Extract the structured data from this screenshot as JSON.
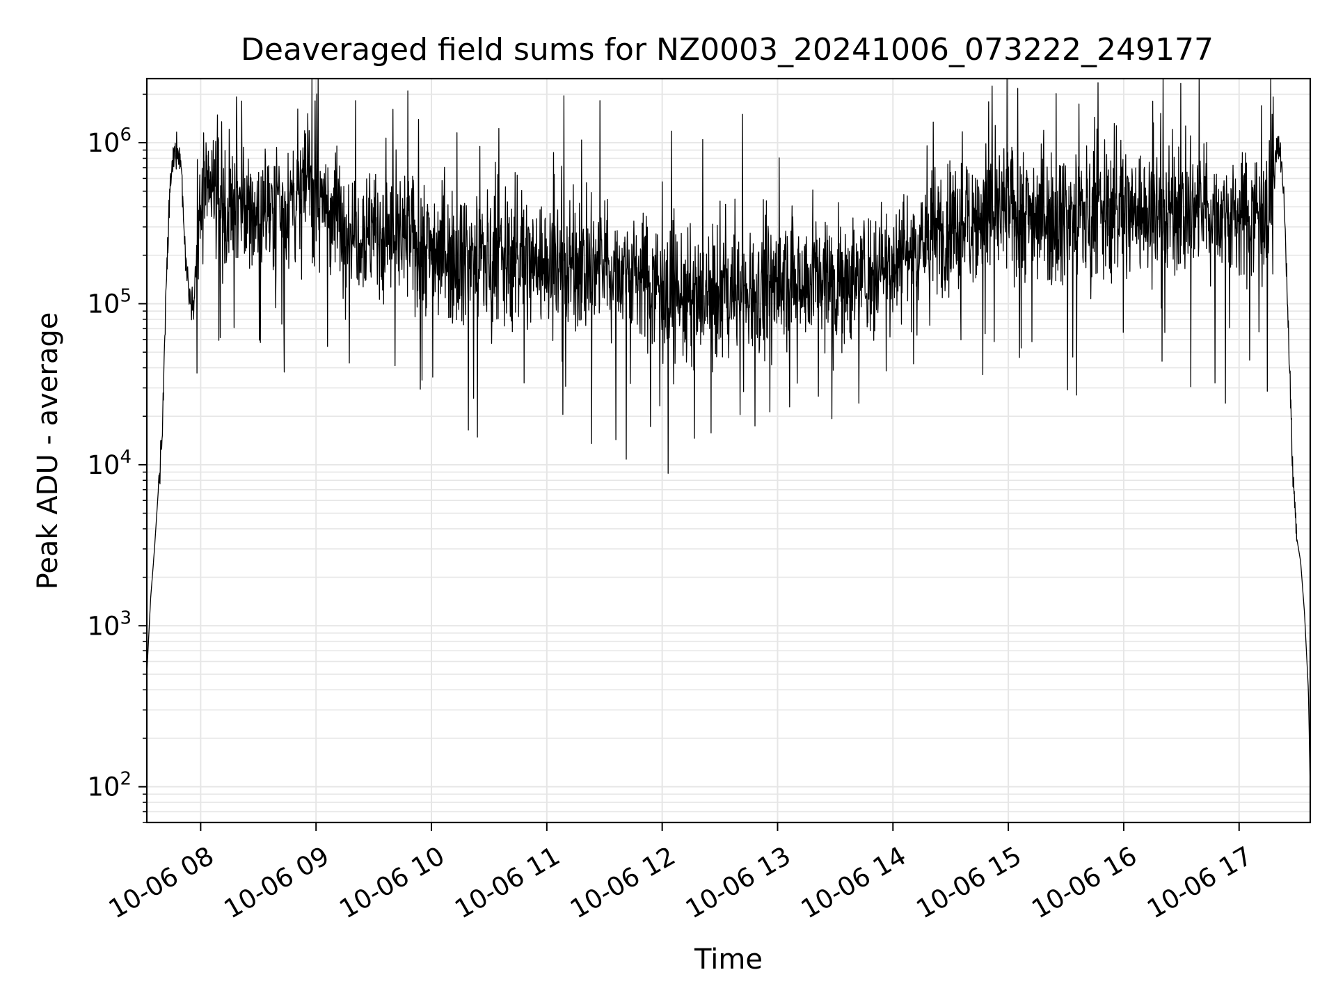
{
  "chart_data": {
    "type": "line",
    "title": "Deaveraged field sums for NZ0003_20241006_073222_249177",
    "xlabel": "Time",
    "ylabel": "Peak ADU - average",
    "xscale": "date",
    "yscale": "log",
    "xlim": [
      "10-06 07:32",
      "10-06 17:37"
    ],
    "ylim": [
      60,
      2500000
    ],
    "grid": true,
    "x_ticks": [
      "10-06 08",
      "10-06 09",
      "10-06 10",
      "10-06 11",
      "10-06 12",
      "10-06 13",
      "10-06 14",
      "10-06 15",
      "10-06 16",
      "10-06 17"
    ],
    "y_ticks": [
      {
        "value": 100,
        "base": "10",
        "exp": "2"
      },
      {
        "value": 1000,
        "base": "10",
        "exp": "3"
      },
      {
        "value": 10000,
        "base": "10",
        "exp": "4"
      },
      {
        "value": 100000,
        "base": "10",
        "exp": "5"
      },
      {
        "value": 1000000,
        "base": "10",
        "exp": "6"
      }
    ],
    "line_color": "#000000",
    "grid_color": "#e6e6e6",
    "series": [
      {
        "x": [
          "10-06 07:32",
          "10-06 07:34",
          "10-06 07:36",
          "10-06 07:38",
          "10-06 07:40",
          "10-06 07:42",
          "10-06 07:44",
          "10-06 07:46",
          "10-06 07:48",
          "10-06 07:50",
          "10-06 07:52",
          "10-06 07:54",
          "10-06 07:56",
          "10-06 07:58",
          "10-06 08:00",
          "10-06 08:05",
          "10-06 08:10",
          "10-06 08:15",
          "10-06 08:20",
          "10-06 08:30",
          "10-06 08:40",
          "10-06 08:50",
          "10-06 08:55",
          "10-06 09:00",
          "10-06 09:10",
          "10-06 09:20",
          "10-06 09:30",
          "10-06 09:40",
          "10-06 09:50",
          "10-06 10:00",
          "10-06 10:15",
          "10-06 10:30",
          "10-06 10:45",
          "10-06 11:00",
          "10-06 11:15",
          "10-06 11:30",
          "10-06 11:45",
          "10-06 12:00",
          "10-06 12:15",
          "10-06 12:30",
          "10-06 12:45",
          "10-06 13:00",
          "10-06 13:15",
          "10-06 13:30",
          "10-06 13:45",
          "10-06 14:00",
          "10-06 14:15",
          "10-06 14:30",
          "10-06 14:45",
          "10-06 15:00",
          "10-06 15:15",
          "10-06 15:30",
          "10-06 15:45",
          "10-06 16:00",
          "10-06 16:15",
          "10-06 16:30",
          "10-06 16:45",
          "10-06 17:00",
          "10-06 17:10",
          "10-06 17:15",
          "10-06 17:18",
          "10-06 17:20",
          "10-06 17:22",
          "10-06 17:24",
          "10-06 17:26",
          "10-06 17:28",
          "10-06 17:30",
          "10-06 17:32",
          "10-06 17:34",
          "10-06 17:36",
          "10-06 17:37"
        ],
        "y": [
          500,
          1500,
          3000,
          7000,
          15000,
          120000,
          500000,
          850000,
          950000,
          700000,
          200000,
          120000,
          100000,
          200000,
          400000,
          500000,
          450000,
          380000,
          350000,
          380000,
          400000,
          450000,
          600000,
          500000,
          350000,
          300000,
          280000,
          260000,
          250000,
          220000,
          200000,
          190000,
          185000,
          180000,
          170000,
          165000,
          160000,
          130000,
          100000,
          110000,
          120000,
          130000,
          150000,
          140000,
          150000,
          190000,
          240000,
          300000,
          350000,
          380000,
          360000,
          350000,
          360000,
          380000,
          370000,
          380000,
          370000,
          350000,
          380000,
          400000,
          600000,
          950000,
          800000,
          300000,
          50000,
          8000,
          3500,
          2500,
          1200,
          400,
          100
        ]
      }
    ]
  }
}
